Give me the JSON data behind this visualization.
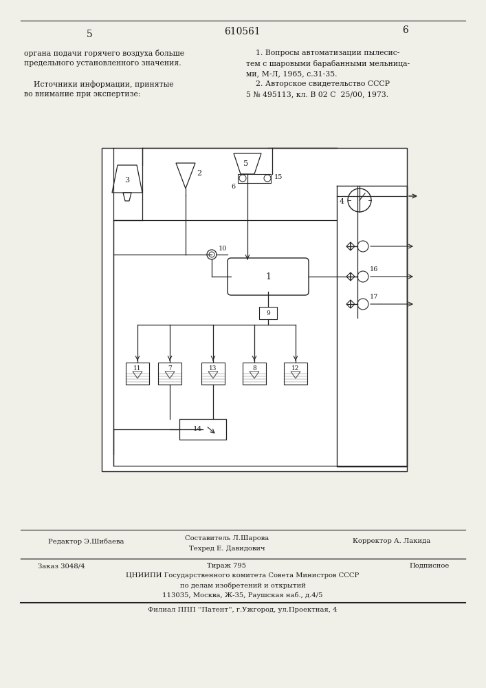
{
  "page_number_left": "5",
  "page_number_center": "610561",
  "page_number_right": "6",
  "text_left_col": [
    "органа подачи горячего воздуха больше",
    "предельного установленного значения.",
    "",
    "    Источники информации, принятые",
    "во внимание при экспертизе:"
  ],
  "text_right_col": [
    "    1. Вопросы автоматизации пылесис-",
    "тем с шаровыми барабанными мельница-",
    "ми, М-Л, 1965, с.31-35.",
    "    2. Авторское свидетельство СССР",
    "5 № 495113, кл. В 02 С  25/00, 1973."
  ],
  "editor_line": "Редактор Э.Шибаева",
  "composer_line1": "Составитель Л.Шарова",
  "composer_line2": "Техред Е. Давидович",
  "corrector_line": "Корректор А. Лакида",
  "order_line": "Заказ 3048/4",
  "tirazh_line": "Тираж 795",
  "podpisnoe_line": "Подписное",
  "org_line1": "ЦНИИПИ Государственного комитета Совета Министров СССР",
  "org_line2": "по делам изобретений и открытий",
  "org_line3": "113035, Москва, Ж-35, Раушская наб., д.4/5",
  "filial_line": "Филиал ППП ''Патент'', г.Ужгород, ул.Проектная, 4",
  "bg_color": "#f0efe8",
  "text_color": "#1a1a1a",
  "line_color": "#222222"
}
